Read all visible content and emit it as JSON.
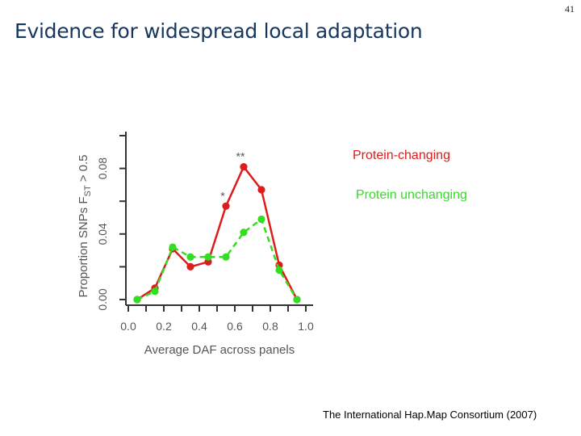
{
  "slide": {
    "number": "41",
    "title": "Evidence for widespread local adaptation",
    "citation": "The International Hap.Map Consortium (2007)"
  },
  "colors": {
    "title": "#17375e",
    "protein_changing": "#dd1c1c",
    "protein_unchanging": "#33dd22",
    "axis": "#333333"
  },
  "chart_data": {
    "type": "line",
    "title": "",
    "xlabel": "Average DAF across panels",
    "ylabel_prefix": "Proportion SNPs F",
    "ylabel_subscript": "ST",
    "ylabel_suffix": " > 0.5",
    "xlim": [
      0.0,
      1.0
    ],
    "ylim": [
      0.0,
      0.1
    ],
    "xticks": [
      "0.0",
      "0.2",
      "0.4",
      "0.6",
      "0.8",
      "1.0"
    ],
    "yticks": [
      "0.00",
      "0.04",
      "0.08"
    ],
    "x": [
      0.05,
      0.15,
      0.25,
      0.35,
      0.45,
      0.55,
      0.65,
      0.75,
      0.85,
      0.95
    ],
    "series": [
      {
        "name": "Protein-changing",
        "color": "#dd1c1c",
        "dashed": false,
        "values": [
          0.0,
          0.007,
          0.031,
          0.02,
          0.023,
          0.057,
          0.081,
          0.067,
          0.021,
          0.0
        ]
      },
      {
        "name": "Protein unchanging",
        "color": "#33dd22",
        "dashed": true,
        "values": [
          0.0,
          0.005,
          0.032,
          0.026,
          0.026,
          0.026,
          0.041,
          0.049,
          0.018,
          0.0
        ]
      }
    ],
    "annotations": [
      {
        "text": "**",
        "x": 0.65,
        "y": 0.081
      },
      {
        "text": "*",
        "x": 0.55,
        "y": 0.057
      }
    ]
  }
}
